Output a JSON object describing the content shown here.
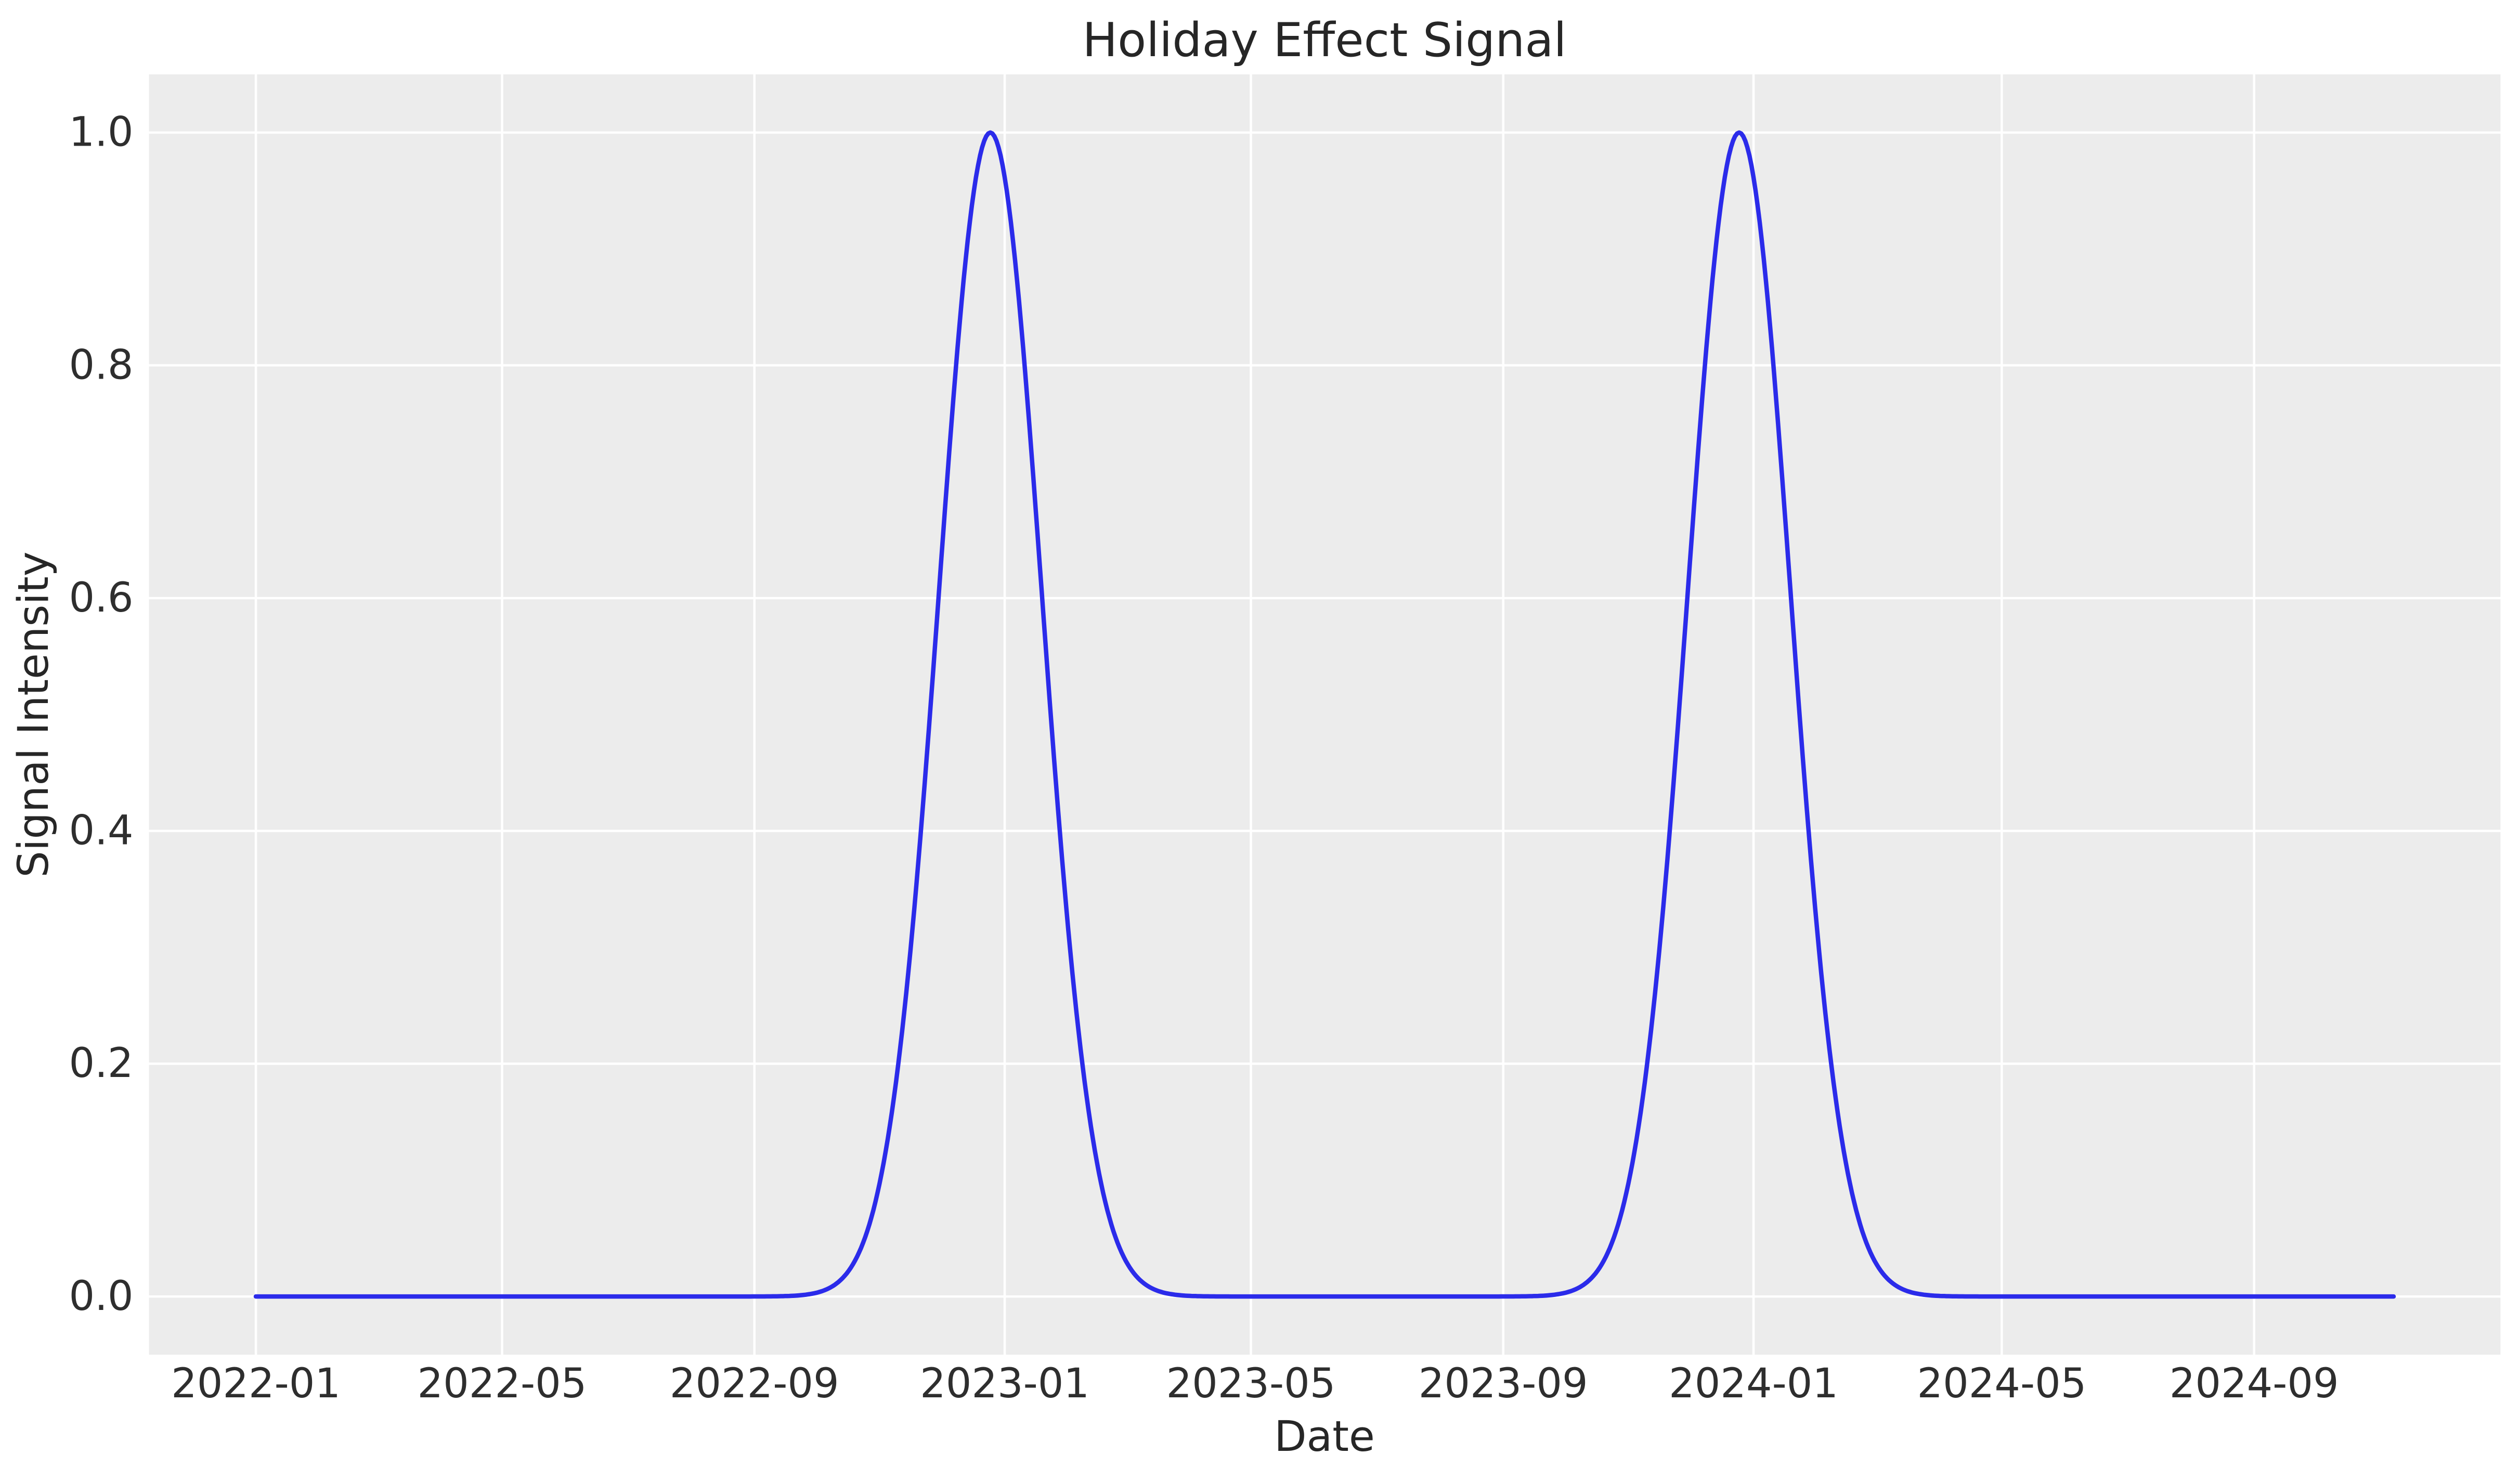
{
  "figure": {
    "background": "#ffffff",
    "plot_background": "#ececec",
    "grid_color": "#ffffff",
    "title_color": "#262626",
    "tick_color": "#2e2e2e"
  },
  "chart_data": {
    "type": "line",
    "title": "Holiday Effect Signal",
    "xlabel": "Date",
    "ylabel": "Signal Intensity",
    "x_tick_labels": [
      "2022-01",
      "2022-05",
      "2022-09",
      "2023-01",
      "2023-05",
      "2023-09",
      "2024-01",
      "2024-05",
      "2024-09"
    ],
    "x_tick_dates": [
      "2022-01-01",
      "2022-05-01",
      "2022-09-01",
      "2023-01-01",
      "2023-05-01",
      "2023-09-01",
      "2024-01-01",
      "2024-05-01",
      "2024-09-01"
    ],
    "y_tick_labels": [
      "0.0",
      "0.2",
      "0.4",
      "0.6",
      "0.8",
      "1.0"
    ],
    "y_tick_values": [
      0.0,
      0.2,
      0.4,
      0.6,
      0.8,
      1.0
    ],
    "ylim": [
      -0.05,
      1.05
    ],
    "x_margin_fraction": 0.05,
    "grid": true,
    "legend": false,
    "series": [
      {
        "name": "holiday_effect_signal",
        "color": "#2b2bea",
        "line_width": 8.5,
        "frequency": "daily",
        "start_date": "2022-01-01",
        "end_date": "2024-11-08",
        "baseline": 0.0,
        "peaks": [
          {
            "center_date": "2022-12-25",
            "amplitude": 1.0,
            "sigma_days": 25
          },
          {
            "center_date": "2023-12-25",
            "amplitude": 1.0,
            "sigma_days": 25
          }
        ]
      }
    ]
  }
}
